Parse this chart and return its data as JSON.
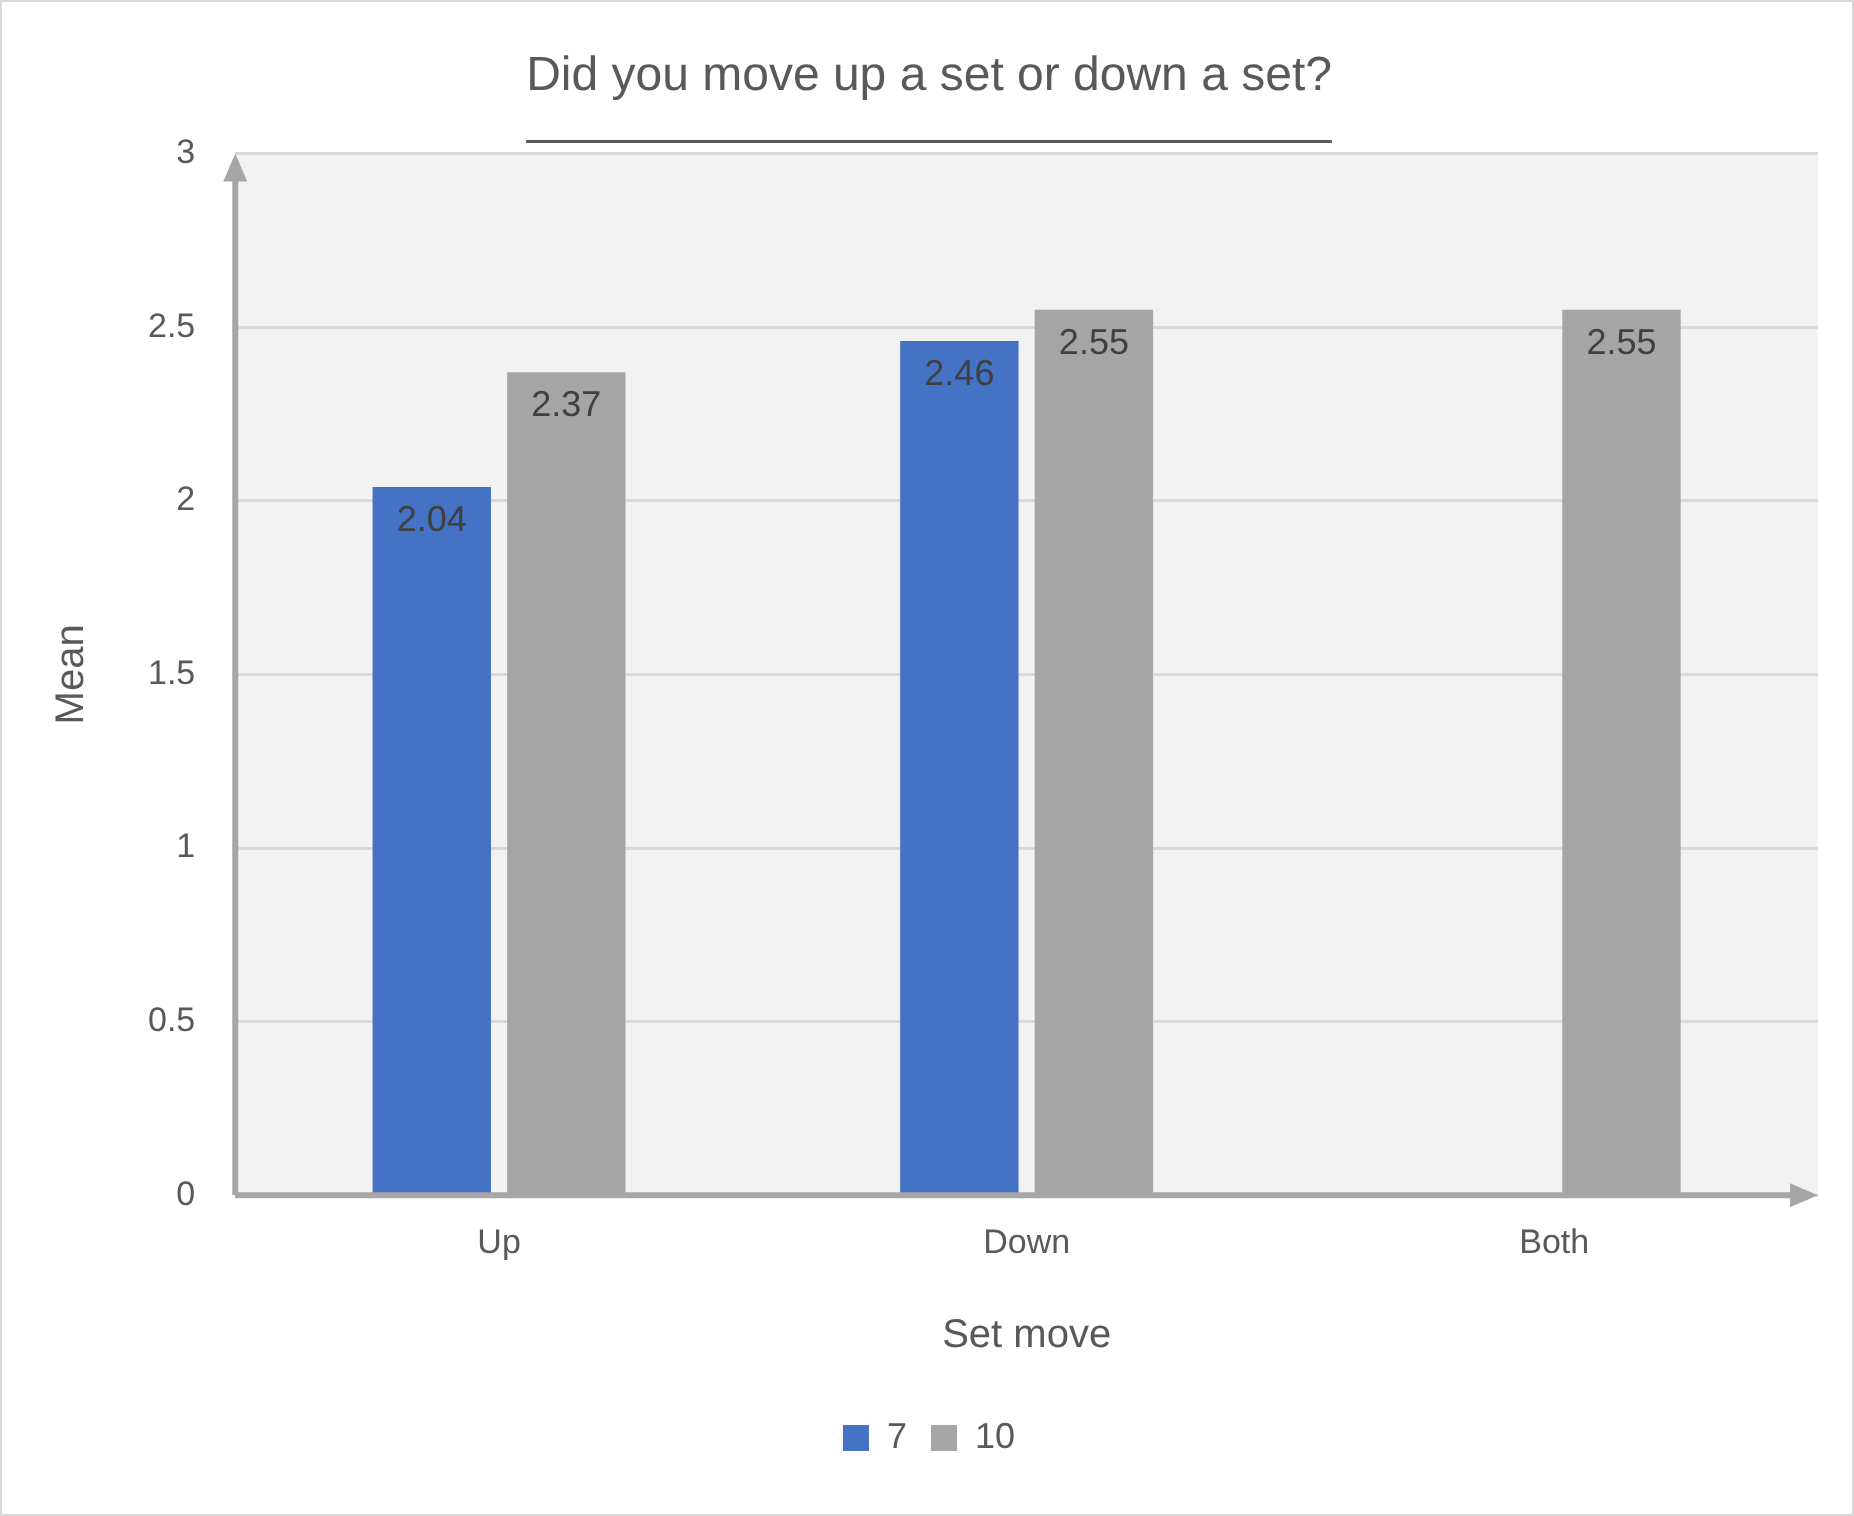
{
  "chart_data": {
    "type": "bar",
    "title": "Did you move up a set or down a set?",
    "xlabel": "Set move",
    "ylabel": "Mean",
    "categories": [
      "Up",
      "Down",
      "Both"
    ],
    "series": [
      {
        "name": "7",
        "color": "#4472c4",
        "values": [
          2.04,
          2.46,
          null
        ]
      },
      {
        "name": "10",
        "color": "#a5a5a5",
        "values": [
          2.37,
          2.55,
          2.55
        ]
      }
    ],
    "ylim": [
      0,
      3
    ],
    "yticks": [
      0,
      0.5,
      1,
      1.5,
      2,
      2.5,
      3
    ],
    "grid": "y",
    "legend": "bottom",
    "data_labels": true
  }
}
